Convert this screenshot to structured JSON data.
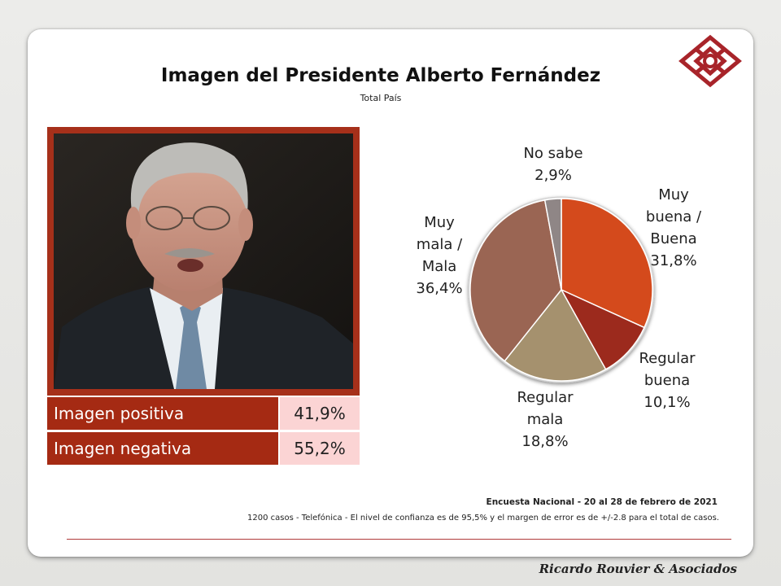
{
  "header": {
    "title": "Imagen del Presidente Alberto Fernández",
    "subtitle": "Total País"
  },
  "image_summary": [
    {
      "label": "Imagen positiva",
      "value": "41,9%"
    },
    {
      "label": "Imagen negativa",
      "value": "55,2%"
    }
  ],
  "chart_data": {
    "type": "pie",
    "title": "",
    "slices": [
      {
        "label_lines": [
          "Muy",
          "buena /",
          "Buena"
        ],
        "value": 31.8,
        "value_text": "31,8%",
        "color": "#d44a1c"
      },
      {
        "label_lines": [
          "Regular",
          "buena"
        ],
        "value": 10.1,
        "value_text": "10,1%",
        "color": "#9c2a1d"
      },
      {
        "label_lines": [
          "Regular",
          "mala"
        ],
        "value": 18.8,
        "value_text": "18,8%",
        "color": "#a5916e"
      },
      {
        "label_lines": [
          "Muy",
          "mala /",
          "Mala"
        ],
        "value": 36.4,
        "value_text": "36,4%",
        "color": "#9a6553"
      },
      {
        "label_lines": [
          "No sabe"
        ],
        "value": 2.9,
        "value_text": "2,9%",
        "color": "#8f8686"
      }
    ]
  },
  "footer": {
    "survey": "Encuesta Nacional - 20 al 28 de febrero de 2021",
    "note": "1200 casos - Telefónica   - El nivel de confianza  es de 95,5% y el margen de error es de +/-2.8 para el total  de casos."
  },
  "brand": "Ricardo Rouvier & Asociados",
  "icons": {
    "logo": "diamond-lattice-logo",
    "photo": "president-portrait"
  }
}
